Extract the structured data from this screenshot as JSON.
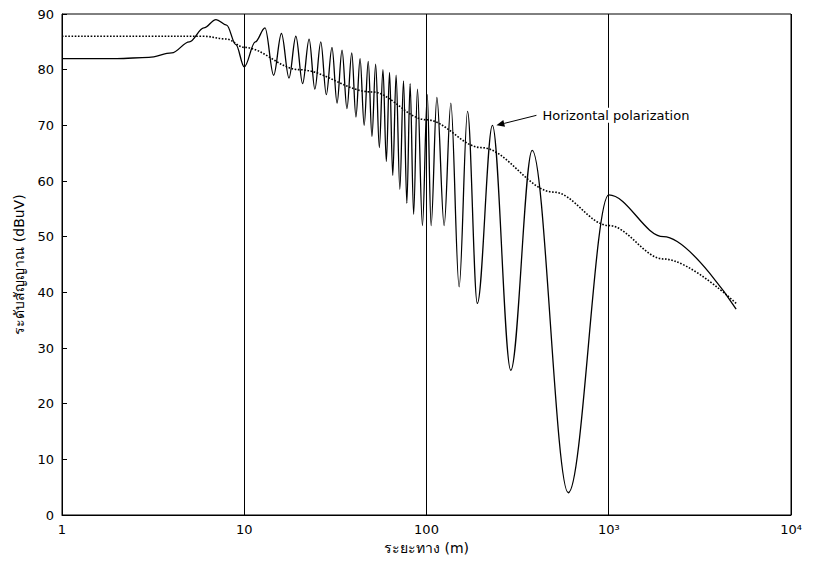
{
  "chart_data": {
    "type": "line",
    "x_label": "ระยะทาง (m)",
    "y_label": "ระดับสัญญาณ (dBuV)",
    "log": "x",
    "grid": "x",
    "xlim": [
      1,
      10000
    ],
    "xticks": [
      1,
      10,
      100,
      {
        "value": 1000,
        "label": "10³"
      },
      {
        "value": 10000,
        "label": "10⁴"
      }
    ],
    "ylim": [
      0,
      90
    ],
    "yticks": [
      0,
      10,
      20,
      30,
      40,
      50,
      60,
      70,
      80,
      90
    ],
    "series": [
      {
        "color": "#000000",
        "line_style": "solid",
        "x": [
          1,
          2,
          3,
          4,
          5,
          6,
          7,
          8,
          9,
          10,
          11.5,
          13,
          14.5,
          16,
          17.6,
          19.2,
          20.9,
          22.7,
          24.4,
          26.3,
          28.2,
          30.3,
          32.3,
          34.4,
          36.6,
          38.9,
          41,
          43.2,
          45.5,
          47.9,
          50.2,
          52.6,
          55.1,
          57.7,
          60.2,
          62.7,
          65.3,
          68.1,
          71.4,
          74.8,
          78,
          81.3,
          85,
          89.2,
          95,
          101,
          106,
          114,
          125,
          136,
          151,
          168,
          190,
          230,
          290,
          380,
          600,
          1000,
          2000,
          5000
        ],
        "values": [
          82,
          82,
          82.2,
          83,
          85,
          87.5,
          89,
          88,
          84.5,
          80.5,
          85,
          87.5,
          79,
          86.5,
          78.5,
          86,
          77.5,
          85.5,
          76.5,
          85,
          75.5,
          84,
          74,
          83.5,
          73,
          83,
          71.5,
          82,
          70,
          81.5,
          68,
          81,
          66,
          80,
          63.5,
          79.5,
          61,
          79,
          58.5,
          78,
          56,
          77.5,
          54,
          76.5,
          52,
          75.5,
          52,
          75,
          52,
          74,
          41,
          72.5,
          38,
          70,
          26,
          65.5,
          4,
          57.5,
          50,
          37
        ]
      },
      {
        "color": "#000000",
        "line_style": "dotted",
        "x": [
          1,
          3,
          6,
          8,
          10,
          20,
          50,
          100,
          200,
          500,
          1000,
          2000,
          5000
        ],
        "values": [
          86,
          86,
          86,
          85.5,
          84,
          80,
          76,
          71,
          66,
          58,
          52,
          46,
          38
        ]
      }
    ],
    "annotations": [
      {
        "text": "Horizontal polarization",
        "x": 230,
        "y": 70
      }
    ]
  }
}
